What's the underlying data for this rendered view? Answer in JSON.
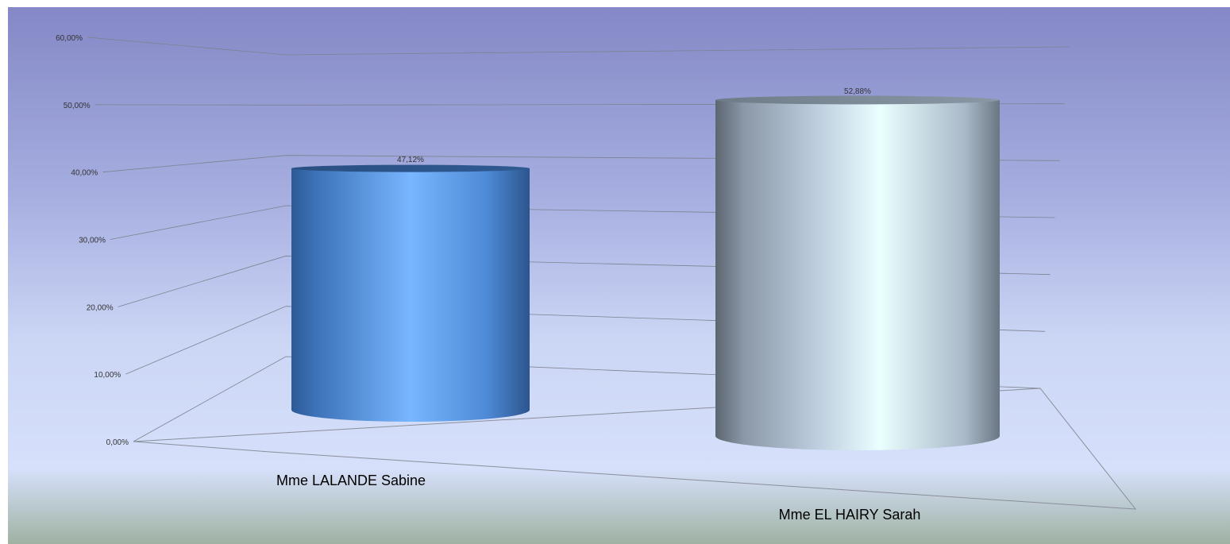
{
  "chart_data": {
    "type": "bar",
    "style": "3d-cylinder",
    "categories": [
      "Mme LALANDE Sabine",
      "Mme EL HAIRY Sarah"
    ],
    "series": [
      {
        "values": [
          47.12,
          52.88
        ],
        "labels": [
          "47,12%",
          "52,88%"
        ]
      }
    ],
    "bar_colors": [
      "#5b9be6",
      "#d8e8f2"
    ],
    "y_ticks": [
      "0,00%",
      "10,00%",
      "20,00%",
      "30,00%",
      "40,00%",
      "50,00%",
      "60,00%"
    ],
    "ylim": [
      0,
      60
    ],
    "grid": true,
    "legend": "none"
  }
}
